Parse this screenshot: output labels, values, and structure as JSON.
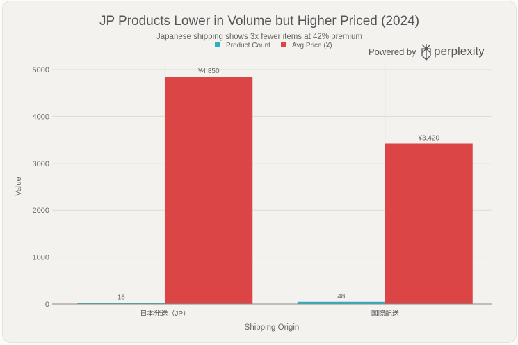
{
  "chart_data": {
    "type": "bar",
    "title": "JP Products Lower in Volume but Higher Priced (2024)",
    "subtitle": "Japanese shipping shows 3x fewer items at 42% premium",
    "xlabel": "Shipping Origin",
    "ylabel": "Value",
    "ylim": [
      0,
      5000
    ],
    "yticks": [
      0,
      1000,
      2000,
      3000,
      4000,
      5000
    ],
    "categories": [
      "日本発送（JP）",
      "国際配送"
    ],
    "series": [
      {
        "name": "Product Count",
        "color": "#29b0c3",
        "values": [
          16,
          48
        ],
        "labels": [
          "16",
          "48"
        ]
      },
      {
        "name": "Avg Price (¥)",
        "color": "#db4545",
        "values": [
          4850,
          3420
        ],
        "labels": [
          "¥4,850",
          "¥3,420"
        ]
      }
    ],
    "legend": "top-center",
    "grid": true
  },
  "branding": {
    "powered_by": "Powered by",
    "brand": "perplexity"
  }
}
